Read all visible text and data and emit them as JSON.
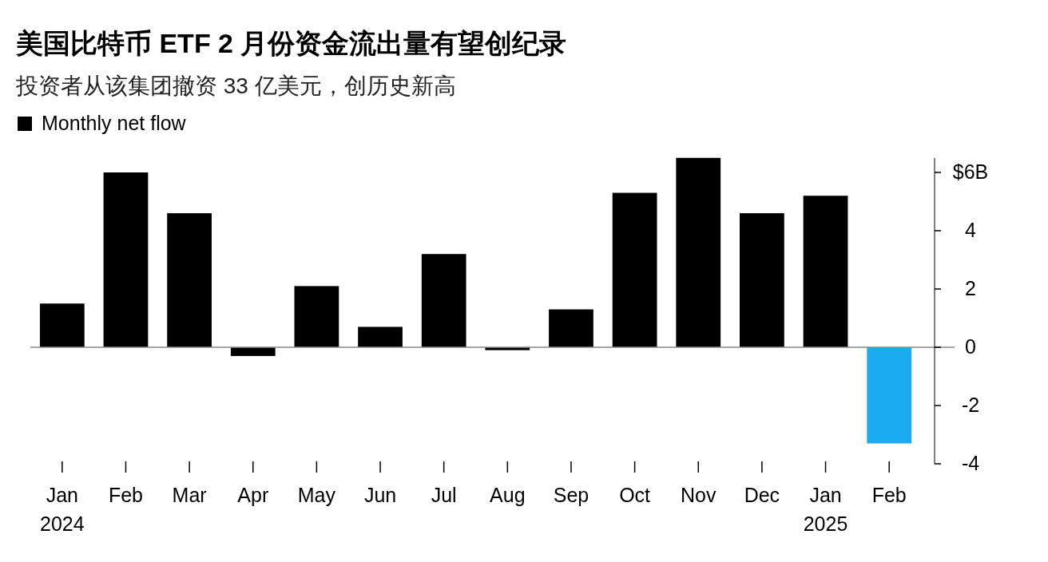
{
  "chart_data": {
    "type": "bar",
    "title": "美国比特币 ETF 2 月份资金流出量有望创纪录",
    "subtitle": "投资者从该集团撤资 33 亿美元，创历史新高",
    "categories": [
      "Jan\n2024",
      "Feb",
      "Mar",
      "Apr",
      "May",
      "Jun",
      "Jul",
      "Aug",
      "Sep",
      "Oct",
      "Nov",
      "Dec",
      "Jan\n2025",
      "Feb"
    ],
    "series": [
      {
        "name": "Monthly net flow",
        "color": "#000000",
        "colors": [
          "#000000",
          "#000000",
          "#000000",
          "#000000",
          "#000000",
          "#000000",
          "#000000",
          "#000000",
          "#000000",
          "#000000",
          "#000000",
          "#000000",
          "#000000",
          "#1aabf0"
        ],
        "values": [
          1.5,
          6.0,
          4.6,
          -0.3,
          2.1,
          0.7,
          3.2,
          -0.1,
          1.3,
          5.3,
          6.5,
          4.6,
          5.2,
          -3.3
        ]
      }
    ],
    "ref_lines": [
      {
        "axis": "y",
        "value": 0,
        "color": "#888888"
      }
    ],
    "ylim": [
      -4,
      6.5
    ],
    "yticks": [
      {
        "value": 6,
        "label": "$6B"
      },
      4,
      2,
      0,
      -2,
      -4
    ],
    "grid": false,
    "legend": "top left"
  }
}
